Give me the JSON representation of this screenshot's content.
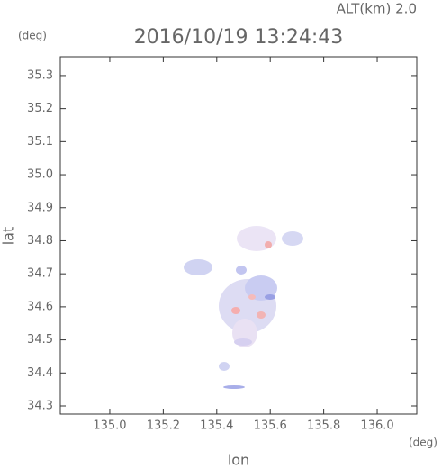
{
  "chart_data": {
    "type": "image",
    "title": "2016/10/19 13:24:43",
    "annotation": "ALT(km) 2.0",
    "xlabel": "lon",
    "ylabel": "lat",
    "x_unit": "(deg)",
    "y_unit": "(deg)",
    "xlim": [
      134.815,
      136.148
    ],
    "ylim": [
      34.2755,
      35.357
    ],
    "xticks": [
      {
        "value": 135,
        "label": "135.0"
      },
      135.2,
      135.4,
      135.6,
      135.8,
      {
        "value": 136,
        "label": "136.0"
      }
    ],
    "yticks": [
      34.3,
      34.4,
      34.5,
      34.6,
      34.7,
      34.8,
      34.9,
      {
        "value": 35,
        "label": "35.0"
      },
      35.1,
      35.2,
      35.3
    ]
  }
}
